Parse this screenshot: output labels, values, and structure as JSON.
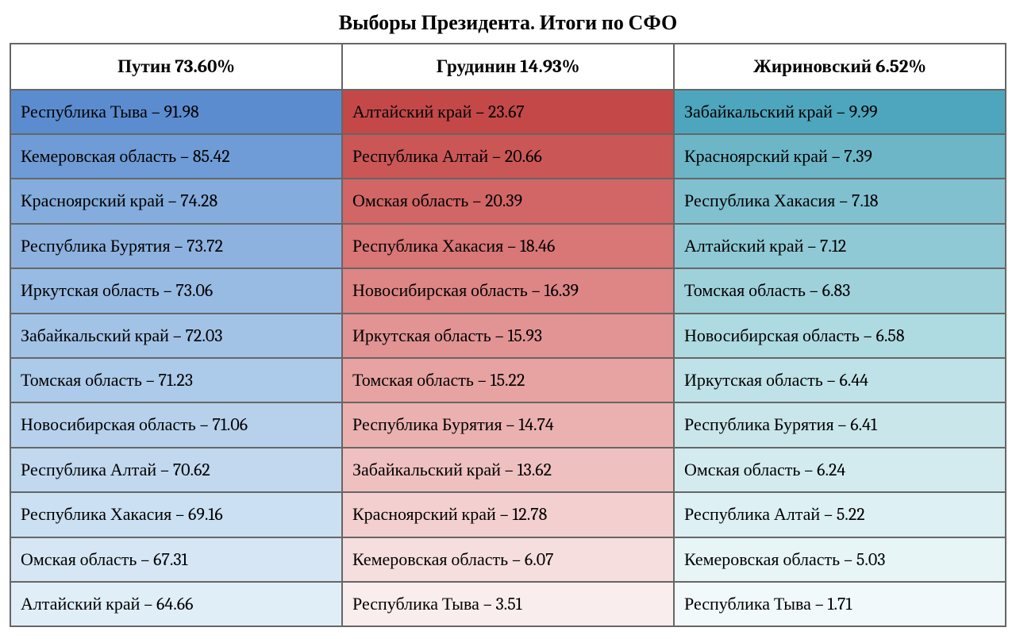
{
  "title": "Выборы Президента. Итоги по СФО",
  "columns": [
    {
      "header": "Путин  73.60%",
      "colors": [
        "#5b8cd0",
        "#6f9cd6",
        "#84acdc",
        "#8eb2df",
        "#98bbe3",
        "#a2c3e6",
        "#accae9",
        "#b7d1ec",
        "#c1d8ef",
        "#cbe0f2",
        "#d6e6f4",
        "#e0eef8"
      ],
      "rows": [
        "Республика Тыва – 91.98",
        "Кемеровская область – 85.42",
        "Красноярский край – 74.28",
        "Республика Бурятия – 73.72",
        "Иркутская область – 73.06",
        "Забайкальский край – 72.03",
        "Томская область – 71.23",
        "Новосибирская область – 71.06",
        "Республика Алтай – 70.62",
        "Республика Хакасия – 69.16",
        "Омская область – 67.31",
        "Алтайский край – 64.66"
      ]
    },
    {
      "header": "Грудинин  14.93%",
      "colors": [
        "#c44848",
        "#cb5656",
        "#d26666",
        "#d97676",
        "#de8585",
        "#e29393",
        "#e7a2a2",
        "#ebb1b1",
        "#efc0c0",
        "#f3cfcf",
        "#f6dede",
        "#faeded"
      ],
      "rows": [
        "Алтайский край – 23.67",
        "Республика Алтай – 20.66",
        "Омская область – 20.39",
        "Республика Хакасия – 18.46",
        "Новосибирская область – 16.39",
        "Иркутская область – 15.93",
        "Томская область – 15.22",
        "Республика Бурятия – 14.74",
        "Забайкальский край – 13.62",
        "Красноярский край – 12.78",
        "Кемеровская область – 6.07",
        "Республика Тыва – 3.51"
      ]
    },
    {
      "header": "Жириновский   6.52%",
      "colors": [
        "#4da6bd",
        "#6cb6c8",
        "#80c0cf",
        "#8fc9d5",
        "#9fd1db",
        "#aedae1",
        "#bee2e7",
        "#c9e6eb",
        "#d3ebef",
        "#ddf0f3",
        "#e7f5f7",
        "#f1f9fb"
      ],
      "rows": [
        "Забайкальский край – 9.99",
        "Красноярский край –  7.39",
        "Республика Хакасия – 7.18",
        "Алтайский край – 7.12",
        "Томская область – 6.83",
        "Новосибирская область – 6.58",
        "Иркутская область – 6.44",
        "Республика Бурятия – 6.41",
        "Омская область – 6.24",
        "Республика Алтай – 5.22",
        "Кемеровская область – 5.03",
        "Республика Тыва – 1.71"
      ]
    }
  ]
}
